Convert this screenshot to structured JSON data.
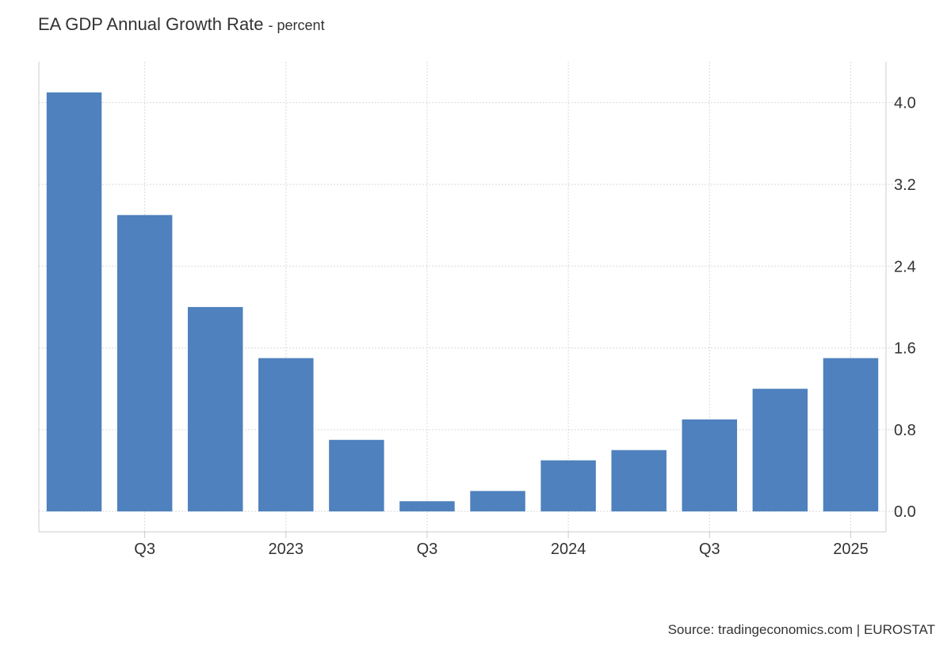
{
  "header": {
    "title": "EA GDP Annual Growth Rate",
    "subtitle": "- percent"
  },
  "source": "Source: tradingeconomics.com | EUROSTAT",
  "chart_data": {
    "type": "bar",
    "title": "EA GDP Annual Growth Rate",
    "subtitle": "- percent",
    "xlabel": "",
    "ylabel": "",
    "y_axis_side": "right",
    "ylim": [
      -0.2,
      4.4
    ],
    "yticks": [
      0.0,
      0.8,
      1.6,
      2.4,
      3.2,
      4.0
    ],
    "ytick_labels": [
      "0.0",
      "0.8",
      "1.6",
      "2.4",
      "3.2",
      "4.0"
    ],
    "categories": [
      "2022 Q2",
      "2022 Q3",
      "2022 Q4",
      "2023 Q1",
      "2023 Q2",
      "2023 Q3",
      "2023 Q4",
      "2024 Q1",
      "2024 Q2",
      "2024 Q3",
      "2024 Q4",
      "2025 Q1"
    ],
    "values": [
      4.1,
      2.9,
      2.0,
      1.5,
      0.7,
      0.1,
      0.2,
      0.5,
      0.6,
      0.9,
      1.2,
      1.5
    ],
    "xtick_labels": [
      {
        "at": "2022 Q3",
        "label": "Q3"
      },
      {
        "at": "2023 Q1",
        "label": "2023"
      },
      {
        "at": "2023 Q3",
        "label": "Q3"
      },
      {
        "at": "2024 Q1",
        "label": "2024"
      },
      {
        "at": "2024 Q3",
        "label": "Q3"
      },
      {
        "at": "2025 Q1",
        "label": "2025"
      }
    ],
    "grid": true,
    "legend": "none",
    "bar_color": "#4e81bd",
    "grid_color": "#d9d9d9",
    "axis_color": "#cccccc"
  }
}
